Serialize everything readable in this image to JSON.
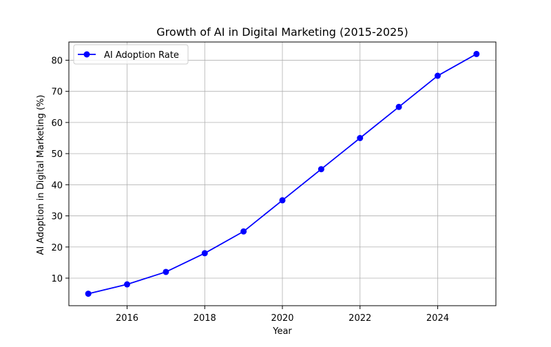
{
  "chart_data": {
    "type": "line",
    "title": "Growth of AI in Digital Marketing (2015-2025)",
    "xlabel": "Year",
    "ylabel": "AI Adoption in Digital Marketing (%)",
    "x": [
      2015,
      2016,
      2017,
      2018,
      2019,
      2020,
      2021,
      2022,
      2023,
      2024,
      2025
    ],
    "series": [
      {
        "name": "AI Adoption Rate",
        "values": [
          5,
          8,
          12,
          18,
          25,
          35,
          45,
          55,
          65,
          75,
          82
        ],
        "color": "#0000ff",
        "marker": "circle"
      }
    ],
    "xlim": [
      2014.5,
      2025.5
    ],
    "ylim": [
      1.15,
      85.85
    ],
    "xticks": [
      2016,
      2018,
      2020,
      2022,
      2024
    ],
    "yticks": [
      10,
      20,
      30,
      40,
      50,
      60,
      70,
      80
    ],
    "grid": true,
    "legend": "upper-left"
  }
}
